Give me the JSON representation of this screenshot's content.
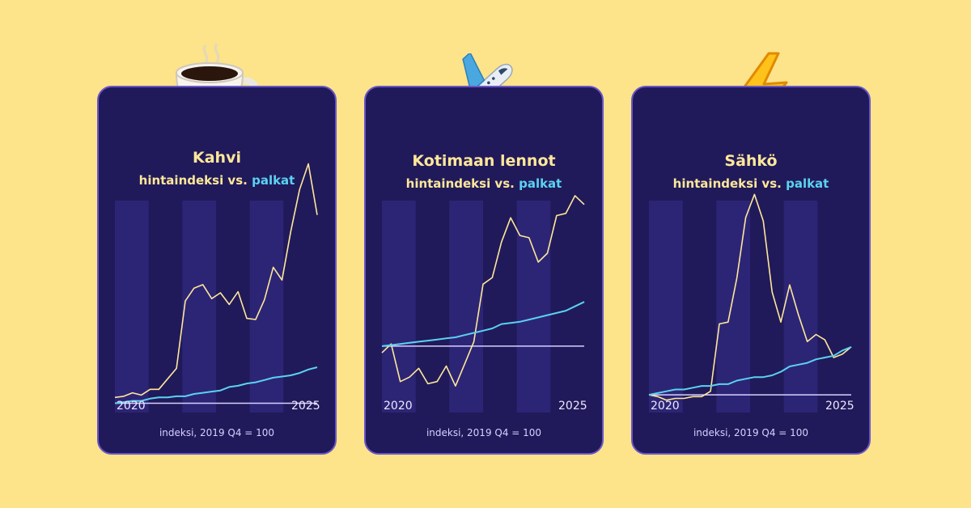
{
  "colors": {
    "background": "#FDE38A",
    "card": "#201A5A",
    "card_border": "#6A55C8",
    "band": "#2C2575",
    "price_line": "#FFE79A",
    "wage_line": "#5BD2F0",
    "baseline": "#D8D0FF"
  },
  "icons": [
    "coffee-cup-icon",
    "airplane-icon",
    "lightning-icon"
  ],
  "chart_data": [
    {
      "type": "line",
      "title": "Kahvi",
      "subtitle_price": "hintaindeksi vs.",
      "subtitle_wage": "palkat",
      "x_start_label": "2020",
      "x_end_label": "2025",
      "footnote": "indeksi, 2019 Q4 = 100",
      "baseline": 100,
      "ylim": [
        92,
        330
      ],
      "series": [
        {
          "key": "price",
          "values": [
            105,
            106,
            109,
            107,
            112,
            112,
            121,
            130,
            188,
            199,
            202,
            190,
            195,
            185,
            196,
            173,
            172,
            189,
            217,
            206,
            248,
            284,
            306,
            262
          ]
        },
        {
          "key": "wage",
          "values": [
            100,
            101,
            102,
            102,
            104,
            105,
            105,
            106,
            106,
            108,
            109,
            110,
            111,
            114,
            115,
            117,
            118,
            120,
            122,
            123,
            124,
            126,
            129,
            131
          ]
        }
      ]
    },
    {
      "type": "line",
      "title": "Kotimaan lennot",
      "subtitle_price": "hintaindeksi vs.",
      "subtitle_wage": "palkat",
      "x_start_label": "2020",
      "x_end_label": "2025",
      "footnote": "indeksi, 2019 Q4 = 100",
      "baseline": 100,
      "ylim": [
        70,
        195
      ],
      "series": [
        {
          "key": "price",
          "values": [
            97,
            101,
            84,
            86,
            90,
            83,
            84,
            91,
            82,
            92,
            102,
            128,
            131,
            147,
            158,
            150,
            149,
            138,
            142,
            159,
            160,
            168,
            164
          ]
        },
        {
          "key": "wage",
          "values": [
            100,
            100.5,
            101,
            101.5,
            102,
            102.5,
            103,
            103.5,
            104,
            105,
            106,
            107,
            108,
            110,
            110.5,
            111,
            112,
            113,
            114,
            115,
            116,
            118,
            120
          ]
        }
      ]
    },
    {
      "type": "line",
      "title": "Sähkö",
      "subtitle_price": "hintaindeksi vs.",
      "subtitle_wage": "palkat",
      "x_start_label": "2020",
      "x_end_label": "2025",
      "footnote": "indeksi, 2019 Q4 = 100",
      "baseline": 100,
      "ylim": [
        90,
        246
      ],
      "series": [
        {
          "key": "price",
          "values": [
            100,
            99,
            97,
            98,
            98,
            99,
            99,
            102,
            140,
            141,
            166,
            200,
            213,
            198,
            158,
            141,
            162,
            145,
            130,
            134,
            131,
            121,
            123,
            127
          ]
        },
        {
          "key": "wage",
          "values": [
            100,
            101,
            102,
            103,
            103,
            104,
            105,
            105,
            106,
            106,
            108,
            109,
            110,
            110,
            111,
            113,
            116,
            117,
            118,
            120,
            121,
            122,
            125,
            127
          ]
        }
      ]
    }
  ]
}
